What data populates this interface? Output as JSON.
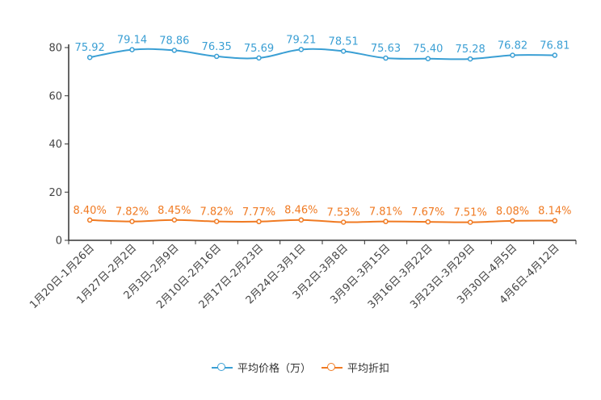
{
  "chart_data": {
    "type": "line",
    "categories": [
      "1月20日-1月26日",
      "1月27日-2月2日",
      "2月3日-2月9日",
      "2月10日-2月16日",
      "2月17日-2月23日",
      "2月24日-3月1日",
      "3月2日-3月8日",
      "3月9日-3月15日",
      "3月16日-3月22日",
      "3月23日-3月29日",
      "3月30日-4月5日",
      "4月6日-4月12日"
    ],
    "ylim": [
      0,
      80
    ],
    "yticks": [
      0,
      20,
      40,
      60,
      80
    ],
    "series": [
      {
        "name": "平均价格（万）",
        "color": "#3a9fd4",
        "values": [
          75.92,
          79.14,
          78.86,
          76.35,
          75.69,
          79.21,
          78.51,
          75.63,
          75.4,
          75.28,
          76.82,
          76.81
        ],
        "labels": [
          "75.92",
          "79.14",
          "78.86",
          "76.35",
          "75.69",
          "79.21",
          "78.51",
          "75.63",
          "75.40",
          "75.28",
          "76.82",
          "76.81"
        ]
      },
      {
        "name": "平均折扣",
        "color": "#f07a22",
        "values": [
          8.4,
          7.82,
          8.45,
          7.82,
          7.77,
          8.46,
          7.53,
          7.81,
          7.67,
          7.51,
          8.08,
          8.14
        ],
        "labels": [
          "8.40%",
          "7.82%",
          "8.45%",
          "7.82%",
          "7.77%",
          "8.46%",
          "7.53%",
          "7.81%",
          "7.67%",
          "7.51%",
          "8.08%",
          "8.14%"
        ]
      }
    ],
    "legend": "bottom-center",
    "grid": false
  }
}
